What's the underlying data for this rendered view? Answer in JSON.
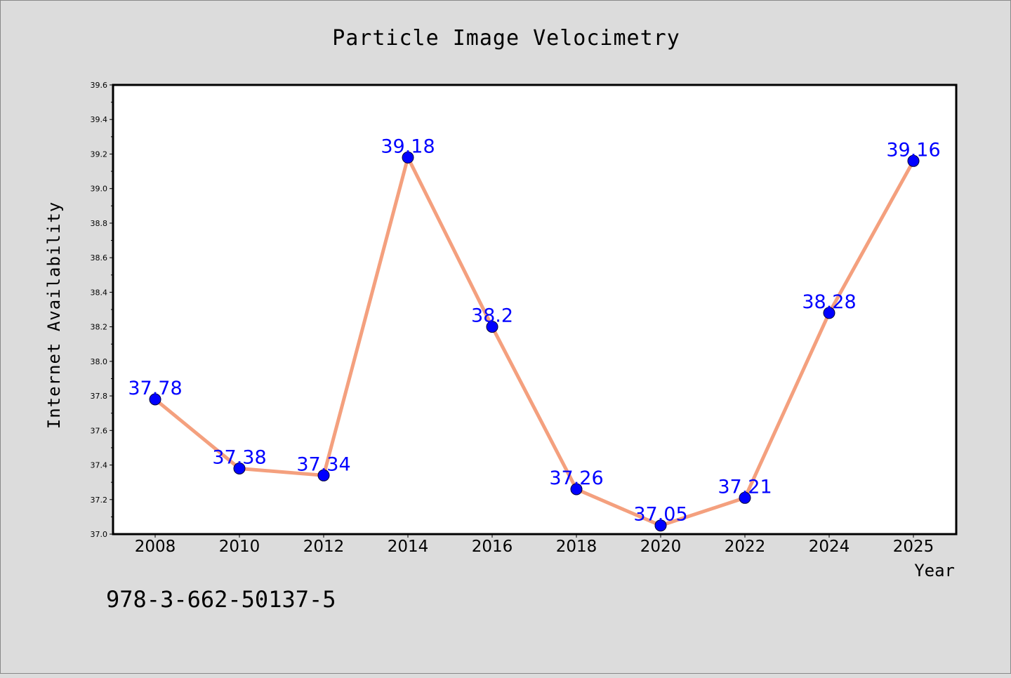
{
  "chart_data": {
    "type": "line",
    "title": "Particle Image Velocimetry",
    "xlabel": "Year",
    "ylabel": "Internet Availability",
    "categories": [
      "2008",
      "2010",
      "2012",
      "2014",
      "2016",
      "2018",
      "2020",
      "2022",
      "2024",
      "2025"
    ],
    "series": [
      {
        "values": [
          37.78,
          37.38,
          37.34,
          39.18,
          38.2,
          37.26,
          37.05,
          37.21,
          38.28,
          39.16
        ],
        "labels": [
          "37.78",
          "37.38",
          "37.34",
          "39.18",
          "38.2",
          "37.26",
          "37.05",
          "37.21",
          "38.28",
          "39.16"
        ]
      }
    ],
    "ylim": [
      37.0,
      39.6
    ],
    "yticks": [
      "37.0",
      "37.2",
      "37.4",
      "37.6",
      "37.8",
      "38.0",
      "38.2",
      "38.4",
      "38.6",
      "38.8",
      "39.0",
      "39.2",
      "39.4",
      "39.6"
    ],
    "grid": false,
    "colors": {
      "line": "#f4a07e",
      "marker": "#0000ff",
      "data_label": "#0000ff",
      "background": "#dcdcdc",
      "plot_area": "#ffffff"
    }
  },
  "caption": "978-3-662-50137-5"
}
